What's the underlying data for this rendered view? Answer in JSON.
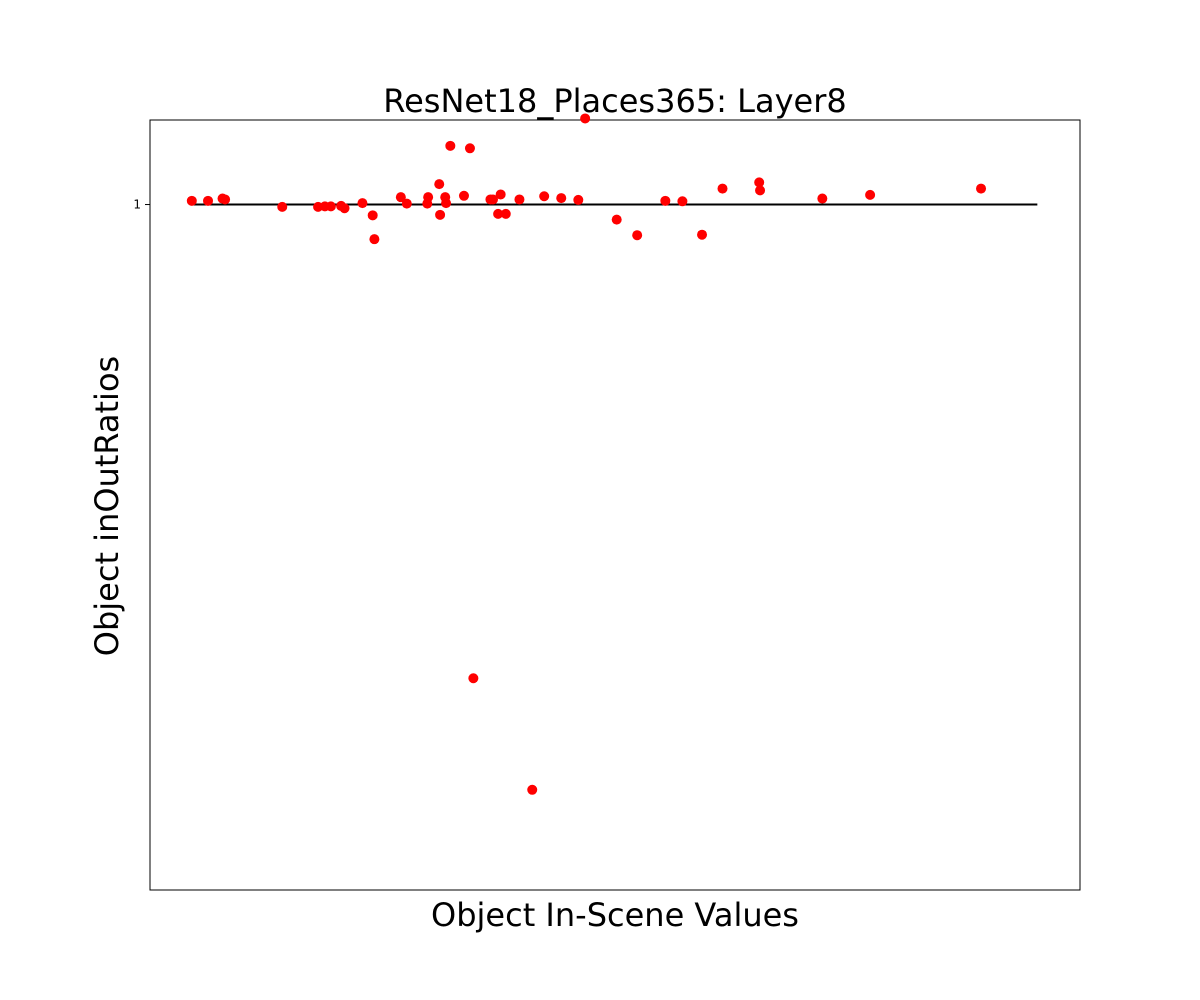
{
  "chart_data": {
    "type": "scatter",
    "title": "ResNet18_Places365: Layer8",
    "xlabel": "Object In-Scene Values",
    "ylabel": "Object inOutRatios",
    "y_scale": "log",
    "y_ticks": [
      {
        "value": 1,
        "label": "1"
      }
    ],
    "x_ticks": [],
    "xlim": [
      0,
      1.09
    ],
    "ylim": [
      0.228,
      1.2
    ],
    "grid": false,
    "legend": "none",
    "reference_line": {
      "y": 1.0,
      "x_start": 0.049,
      "x_end": 1.04,
      "color": "#000000"
    },
    "marker_color": "#ff0000",
    "x": [
      0.049,
      0.068,
      0.085,
      0.088,
      0.155,
      0.197,
      0.205,
      0.212,
      0.224,
      0.228,
      0.249,
      0.261,
      0.263,
      0.294,
      0.301,
      0.325,
      0.326,
      0.339,
      0.34,
      0.346,
      0.347,
      0.352,
      0.368,
      0.375,
      0.379,
      0.399,
      0.402,
      0.408,
      0.411,
      0.417,
      0.433,
      0.448,
      0.462,
      0.482,
      0.502,
      0.51,
      0.547,
      0.571,
      0.604,
      0.624,
      0.647,
      0.671,
      0.714,
      0.715,
      0.788,
      0.844,
      0.974
    ],
    "y": [
      1.008,
      1.008,
      1.013,
      1.011,
      0.995,
      0.995,
      0.996,
      0.996,
      0.997,
      0.992,
      1.003,
      0.977,
      0.928,
      1.016,
      1.002,
      1.002,
      1.016,
      1.045,
      0.978,
      1.016,
      1.003,
      1.135,
      1.019,
      1.129,
      0.36,
      1.011,
      1.011,
      0.98,
      1.022,
      0.98,
      1.011,
      0.283,
      1.018,
      1.014,
      1.01,
      1.204,
      0.968,
      0.936,
      1.008,
      1.007,
      0.937,
      1.035,
      1.049,
      1.031,
      1.013,
      1.021,
      1.035
    ]
  }
}
